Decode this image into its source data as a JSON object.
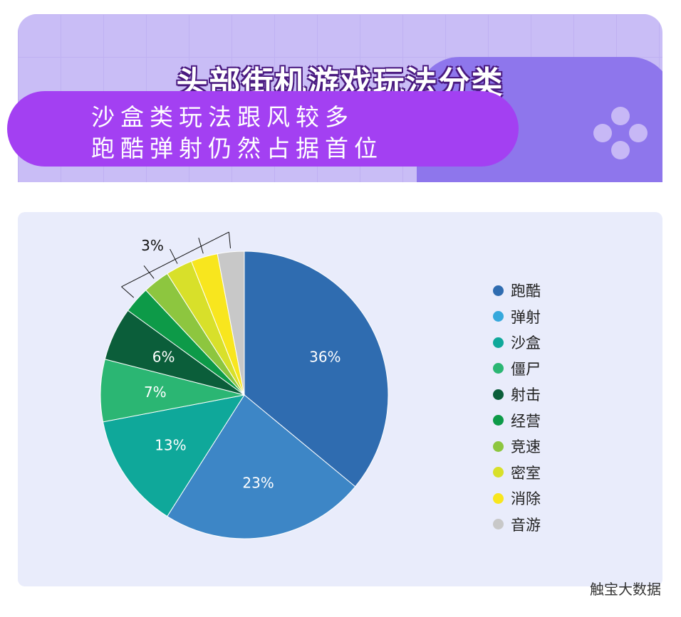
{
  "header": {
    "title": "头部街机游戏玩法分类",
    "subtitle_lines": [
      "沙盒类玩法跟风较多",
      "跑酷弹射仍然占据首位"
    ]
  },
  "chart_data": {
    "type": "pie",
    "categories": [
      "跑酷",
      "弹射",
      "沙盒",
      "僵尸",
      "射击",
      "经营",
      "竞速",
      "密室",
      "消除",
      "音游"
    ],
    "values": [
      36,
      23,
      13,
      7,
      6,
      3,
      3,
      3,
      3,
      3
    ],
    "data_labels": [
      "36%",
      "23%",
      "13%",
      "7%",
      "6%",
      "",
      "",
      "",
      "",
      ""
    ],
    "grouped_label": "3%",
    "colors": [
      "#2f6cb0",
      "#3d86c6",
      "#0fa89a",
      "#2bb673",
      "#0b5e3a",
      "#0d9a48",
      "#8dc63f",
      "#d8e02a",
      "#f8e61e",
      "#c8c8c8"
    ],
    "legend_colors": [
      "#2f6cb0",
      "#36a8dc",
      "#0fa89a",
      "#2bb673",
      "#0b5e3a",
      "#0d9a48",
      "#8dc63f",
      "#d8e02a",
      "#f8e61e",
      "#c8c8c8"
    ],
    "legend_position": "right",
    "start": "top",
    "direction": "clockwise"
  },
  "watermark": "触宝大数据"
}
